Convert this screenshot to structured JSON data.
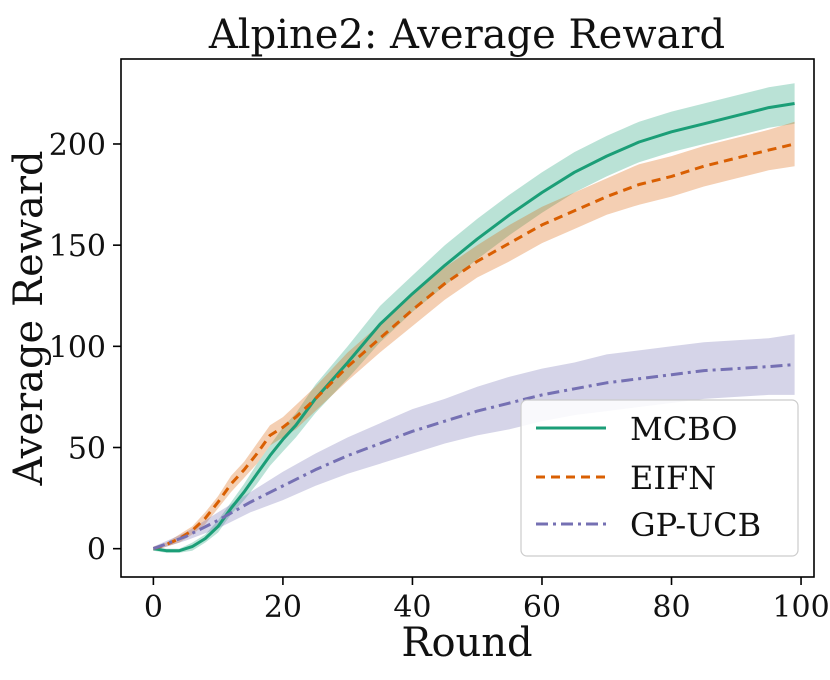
{
  "chart_data": {
    "type": "line",
    "title": "Alpine2: Average Reward",
    "xlabel": "Round",
    "ylabel": "Average Reward",
    "xlim": [
      -5,
      102
    ],
    "ylim": [
      -14,
      242
    ],
    "xticks": [
      0,
      20,
      40,
      60,
      80,
      100
    ],
    "yticks": [
      0,
      50,
      100,
      150,
      200
    ],
    "xtick_labels": [
      "0",
      "20",
      "40",
      "60",
      "80",
      "100"
    ],
    "ytick_labels": [
      "0",
      "50",
      "100",
      "150",
      "200"
    ],
    "grid": false,
    "legend_position": "lower-right",
    "series": [
      {
        "name": "MCBO",
        "color": "#1b9e77",
        "style": "solid",
        "x": [
          0,
          2,
          4,
          6,
          8,
          10,
          12,
          14,
          16,
          18,
          20,
          22,
          25,
          30,
          35,
          40,
          45,
          50,
          55,
          60,
          65,
          70,
          75,
          80,
          85,
          90,
          95,
          99
        ],
        "y": [
          0,
          -1,
          -1,
          1,
          5,
          11,
          20,
          28,
          37,
          46,
          54,
          61,
          74,
          92,
          111,
          126,
          140,
          153,
          165,
          176,
          186,
          194,
          201,
          206,
          210,
          214,
          218,
          220
        ],
        "band": [
          1,
          1,
          1,
          2,
          2,
          3,
          3,
          4,
          5,
          5,
          6,
          6,
          7,
          8,
          9,
          9,
          10,
          10,
          10,
          10,
          10,
          10,
          10,
          10,
          10,
          10,
          10,
          10
        ]
      },
      {
        "name": "EIFN",
        "color": "#d95f02",
        "style": "dashed",
        "x": [
          0,
          2,
          4,
          6,
          8,
          10,
          12,
          14,
          16,
          18,
          20,
          22,
          25,
          30,
          35,
          40,
          45,
          50,
          55,
          60,
          65,
          70,
          75,
          80,
          85,
          90,
          95,
          99
        ],
        "y": [
          0,
          2,
          5,
          9,
          15,
          23,
          32,
          39,
          47,
          56,
          60,
          65,
          74,
          90,
          104,
          118,
          131,
          142,
          151,
          160,
          167,
          174,
          180,
          184,
          189,
          193,
          197,
          200
        ],
        "band": [
          1,
          1,
          2,
          2,
          3,
          3,
          4,
          4,
          5,
          5,
          5,
          6,
          6,
          7,
          7,
          8,
          8,
          8,
          9,
          9,
          9,
          9,
          10,
          10,
          10,
          10,
          10,
          11
        ]
      },
      {
        "name": "GP-UCB",
        "color": "#7570b3",
        "style": "dashdot",
        "x": [
          0,
          5,
          10,
          15,
          20,
          25,
          30,
          35,
          40,
          45,
          50,
          55,
          60,
          65,
          70,
          75,
          80,
          85,
          90,
          95,
          99
        ],
        "y": [
          0,
          6,
          14,
          23,
          31,
          39,
          46,
          52,
          58,
          63,
          68,
          72,
          76,
          79,
          82,
          84,
          86,
          88,
          89,
          90,
          91
        ],
        "band": [
          1,
          2,
          4,
          5,
          7,
          8,
          9,
          10,
          11,
          11,
          12,
          13,
          13,
          13,
          14,
          14,
          14,
          14,
          14,
          14,
          15
        ]
      }
    ]
  }
}
